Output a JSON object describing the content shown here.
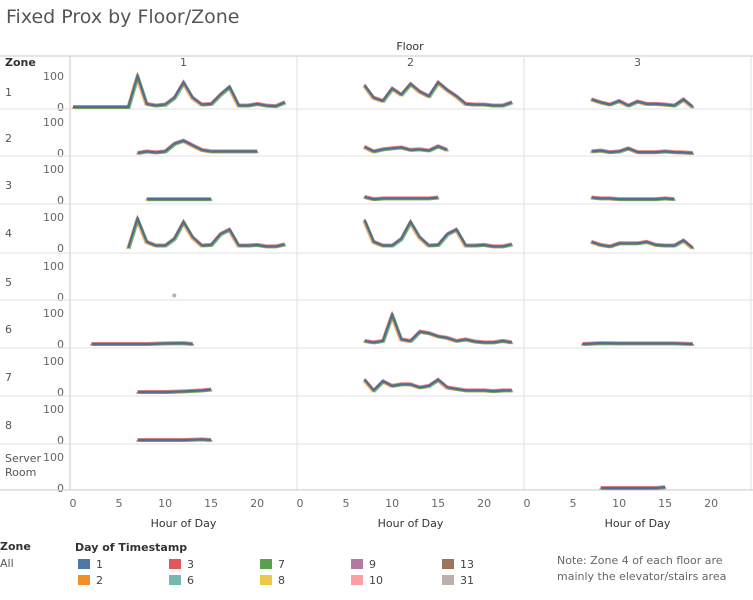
{
  "title": "Fixed Prox by Floor/Zone",
  "chart_data": {
    "type": "line",
    "title": "Fixed Prox by Floor/Zone",
    "column_header": "Floor",
    "row_header": "Zone",
    "xlabel": "Hour of Day",
    "xlim": [
      0,
      24
    ],
    "x_ticks": [
      0,
      5,
      10,
      15,
      20
    ],
    "ylim": [
      0,
      100
    ],
    "y_ticks": [
      0,
      100
    ],
    "floors": [
      "1",
      "2",
      "3"
    ],
    "zones": [
      "1",
      "2",
      "3",
      "4",
      "5",
      "6",
      "7",
      "8",
      "Server Room"
    ],
    "series_note": "Lines colored by Day of Timestamp; overlapping days drawn as one outline",
    "panels": [
      {
        "zone": "1",
        "floor": "1",
        "x": [
          0,
          6,
          7,
          8,
          9,
          10,
          11,
          12,
          13,
          14,
          15,
          16,
          17,
          18,
          19,
          20,
          21,
          22,
          23
        ],
        "y": [
          0,
          0,
          100,
          10,
          5,
          8,
          30,
          80,
          30,
          8,
          10,
          40,
          65,
          5,
          5,
          10,
          5,
          3,
          15
        ]
      },
      {
        "zone": "1",
        "floor": "2",
        "x": [
          7,
          8,
          9,
          10,
          11,
          12,
          13,
          14,
          15,
          16,
          17,
          18,
          19,
          20,
          21,
          22,
          23
        ],
        "y": [
          70,
          30,
          20,
          60,
          40,
          75,
          50,
          35,
          80,
          55,
          35,
          10,
          8,
          8,
          5,
          5,
          15
        ]
      },
      {
        "zone": "1",
        "floor": "3",
        "x": [
          7,
          8,
          9,
          10,
          11,
          12,
          13,
          14,
          15,
          16,
          17,
          18
        ],
        "y": [
          25,
          15,
          8,
          20,
          5,
          18,
          10,
          10,
          8,
          5,
          25,
          0
        ]
      },
      {
        "zone": "2",
        "floor": "1",
        "x": [
          7,
          8,
          9,
          10,
          11,
          12,
          13,
          14,
          15,
          16,
          17,
          18,
          19,
          20
        ],
        "y": [
          0,
          5,
          2,
          5,
          30,
          40,
          25,
          10,
          5,
          5,
          5,
          5,
          5,
          5
        ]
      },
      {
        "zone": "2",
        "floor": "2",
        "x": [
          7,
          8,
          9,
          10,
          11,
          12,
          13,
          14,
          15,
          16
        ],
        "y": [
          20,
          5,
          12,
          15,
          18,
          10,
          12,
          8,
          22,
          10
        ]
      },
      {
        "zone": "2",
        "floor": "3",
        "x": [
          7,
          8,
          9,
          10,
          11,
          12,
          13,
          14,
          15,
          16,
          17,
          18
        ],
        "y": [
          5,
          8,
          3,
          5,
          15,
          3,
          3,
          3,
          5,
          3,
          2,
          0
        ]
      },
      {
        "zone": "3",
        "floor": "1",
        "x": [
          8,
          9,
          10,
          11,
          12,
          13,
          14,
          15
        ],
        "y": [
          3,
          3,
          3,
          3,
          3,
          3,
          3,
          3
        ]
      },
      {
        "zone": "3",
        "floor": "2",
        "x": [
          7,
          8,
          9,
          10,
          11,
          12,
          13,
          14,
          15
        ],
        "y": [
          10,
          3,
          5,
          5,
          5,
          5,
          5,
          5,
          8
        ]
      },
      {
        "zone": "3",
        "floor": "3",
        "x": [
          7,
          8,
          9,
          10,
          11,
          12,
          13,
          14,
          15,
          16
        ],
        "y": [
          8,
          5,
          5,
          3,
          3,
          3,
          3,
          3,
          5,
          3
        ]
      },
      {
        "zone": "4",
        "floor": "1",
        "x": [
          6,
          7,
          8,
          9,
          10,
          11,
          12,
          13,
          14,
          15,
          16,
          17,
          18,
          19,
          20,
          21,
          22,
          23
        ],
        "y": [
          0,
          95,
          20,
          8,
          8,
          30,
          85,
          35,
          8,
          10,
          45,
          60,
          8,
          8,
          10,
          5,
          5,
          12
        ]
      },
      {
        "zone": "4",
        "floor": "2",
        "x": [
          7,
          8,
          9,
          10,
          11,
          12,
          13,
          14,
          15,
          16,
          17,
          18,
          19,
          20,
          21,
          22,
          23
        ],
        "y": [
          90,
          20,
          8,
          8,
          30,
          85,
          35,
          8,
          10,
          45,
          60,
          8,
          8,
          10,
          5,
          5,
          12
        ]
      },
      {
        "zone": "4",
        "floor": "3",
        "x": [
          7,
          8,
          9,
          10,
          11,
          12,
          13,
          14,
          15,
          16,
          17,
          18
        ],
        "y": [
          20,
          10,
          5,
          15,
          15,
          15,
          20,
          10,
          8,
          8,
          25,
          0
        ]
      },
      {
        "zone": "5",
        "floor": "1",
        "x": [
          11
        ],
        "y": [
          5
        ]
      },
      {
        "zone": "6",
        "floor": "1",
        "x": [
          2,
          5,
          8,
          10,
          12,
          13
        ],
        "y": [
          0,
          0,
          0,
          2,
          3,
          0
        ]
      },
      {
        "zone": "6",
        "floor": "2",
        "x": [
          7,
          8,
          9,
          10,
          11,
          12,
          13,
          14,
          15,
          16,
          17,
          18,
          19,
          20,
          21,
          22,
          23
        ],
        "y": [
          10,
          5,
          10,
          95,
          15,
          10,
          40,
          35,
          25,
          20,
          10,
          15,
          8,
          5,
          5,
          10,
          5
        ]
      },
      {
        "zone": "6",
        "floor": "3",
        "x": [
          6,
          8,
          10,
          12,
          14,
          16,
          18
        ],
        "y": [
          0,
          3,
          2,
          2,
          2,
          2,
          0
        ]
      },
      {
        "zone": "7",
        "floor": "1",
        "x": [
          7,
          10,
          12,
          14,
          15
        ],
        "y": [
          0,
          0,
          2,
          5,
          8
        ]
      },
      {
        "zone": "7",
        "floor": "2",
        "x": [
          7,
          8,
          9,
          10,
          11,
          12,
          13,
          14,
          15,
          16,
          17,
          18,
          19,
          20,
          21,
          22,
          23
        ],
        "y": [
          40,
          5,
          35,
          20,
          25,
          25,
          15,
          20,
          40,
          15,
          10,
          5,
          5,
          5,
          3,
          5,
          5
        ]
      },
      {
        "zone": "8",
        "floor": "1",
        "x": [
          7,
          10,
          12,
          14,
          15
        ],
        "y": [
          0,
          0,
          0,
          2,
          0
        ]
      },
      {
        "zone": "Server Room",
        "floor": "3",
        "x": [
          8,
          10,
          12,
          14,
          15
        ],
        "y": [
          0,
          0,
          0,
          0,
          3
        ]
      }
    ]
  },
  "legend": {
    "zone_header": "Zone",
    "zone_value": "All",
    "day_header": "Day of Timestamp",
    "items": [
      {
        "label": "1",
        "color": "#4e79a7"
      },
      {
        "label": "2",
        "color": "#f28e2b"
      },
      {
        "label": "3",
        "color": "#e15759"
      },
      {
        "label": "6",
        "color": "#76b7b2"
      },
      {
        "label": "7",
        "color": "#59a14f"
      },
      {
        "label": "8",
        "color": "#edc948"
      },
      {
        "label": "9",
        "color": "#b07aa1"
      },
      {
        "label": "10",
        "color": "#ff9da7"
      },
      {
        "label": "13",
        "color": "#9c755f"
      },
      {
        "label": "31",
        "color": "#bab0ac"
      }
    ]
  },
  "note": "Note: Zone 4 of each floor are mainly the elevator/stairs area",
  "colors": {
    "main_line": "#4e6f91",
    "grid": "#e2e2e2",
    "axis": "#c8c8c8"
  }
}
